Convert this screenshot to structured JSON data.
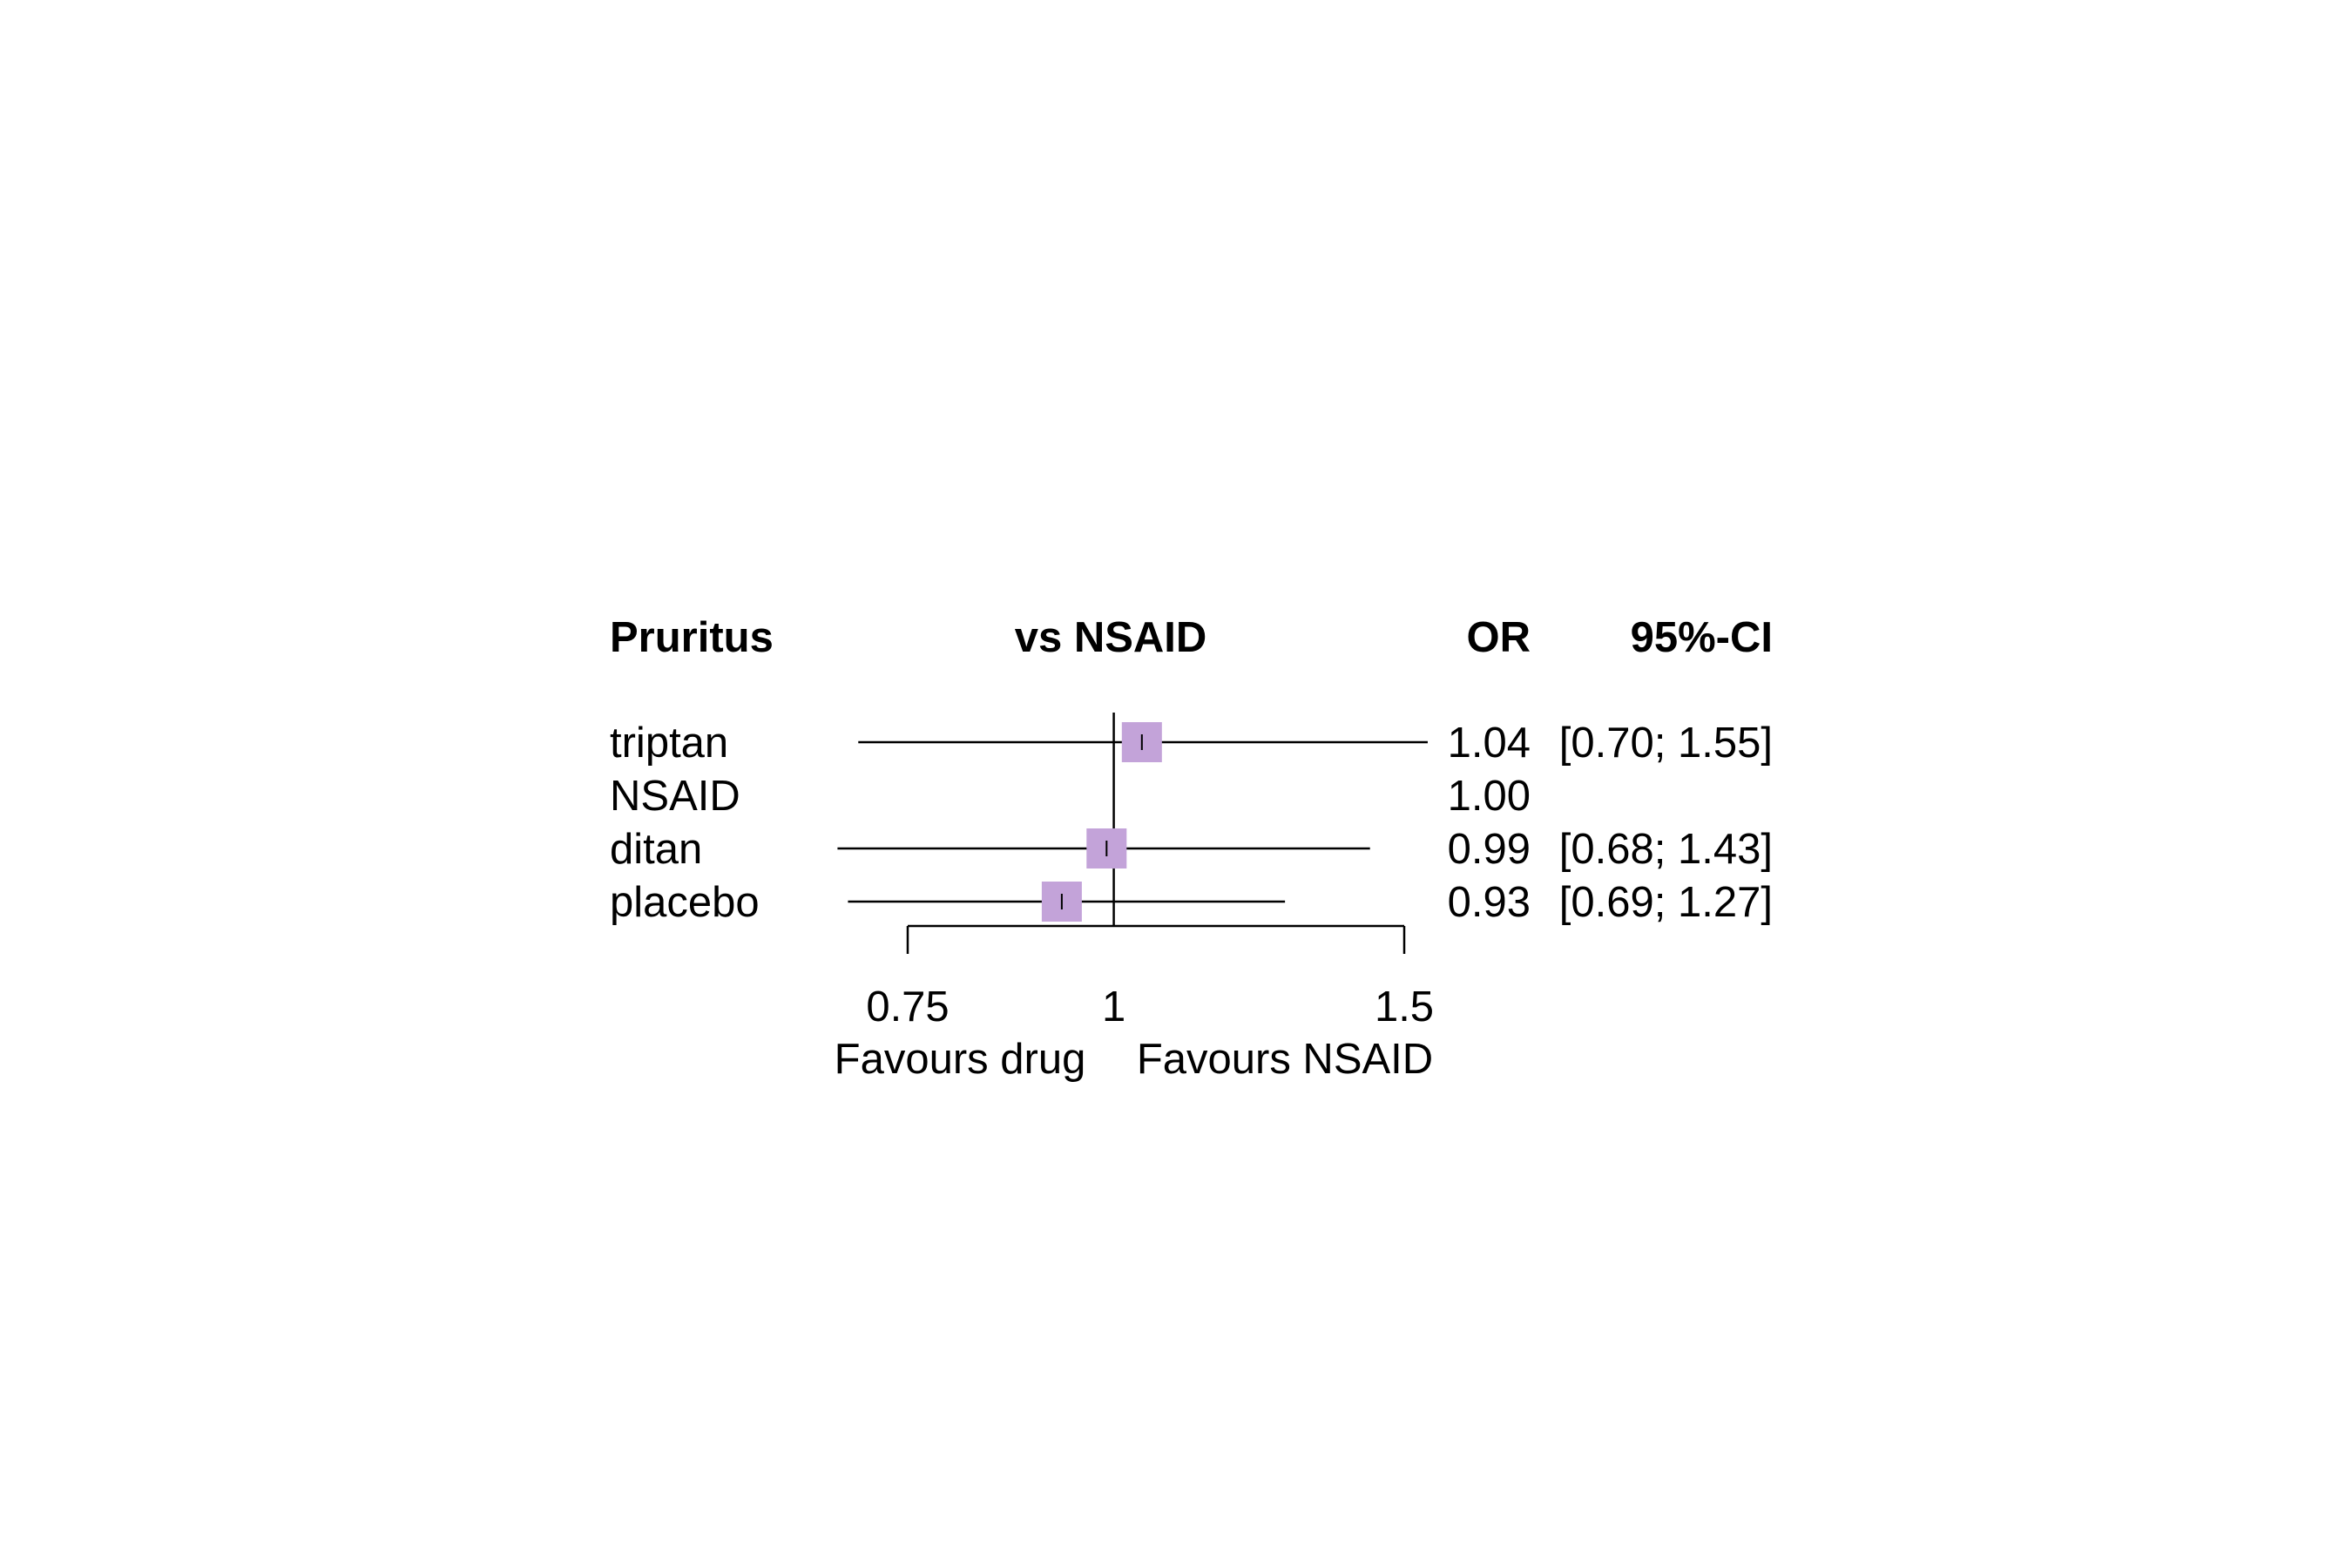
{
  "chart_data": {
    "type": "forest",
    "headers": {
      "label": "Pruritus",
      "comparison": "vs NSAID",
      "estimate": "OR",
      "ci": "95%-CI"
    },
    "rows": [
      {
        "label": "triptan",
        "or": 1.04,
        "lower": 0.7,
        "upper": 1.55,
        "or_text": "1.04",
        "ci_text": "[0.70; 1.55]"
      },
      {
        "label": "NSAID",
        "or": 1.0,
        "lower": null,
        "upper": null,
        "or_text": "1.00",
        "ci_text": ""
      },
      {
        "label": "ditan",
        "or": 0.99,
        "lower": 0.68,
        "upper": 1.43,
        "or_text": "0.99",
        "ci_text": "[0.68; 1.43]"
      },
      {
        "label": "placebo",
        "or": 0.93,
        "lower": 0.69,
        "upper": 1.27,
        "or_text": "0.93",
        "ci_text": "[0.69; 1.27]"
      }
    ],
    "x_scale": "log",
    "xlim": [
      0.75,
      1.5
    ],
    "reference": 1,
    "ticks": [
      0.75,
      1,
      1.5
    ],
    "tick_labels": [
      "0.75",
      "1",
      "1.5"
    ],
    "favours_left": "Favours drug",
    "favours_right": "Favours NSAID",
    "box_color": "#c3a3d9"
  }
}
